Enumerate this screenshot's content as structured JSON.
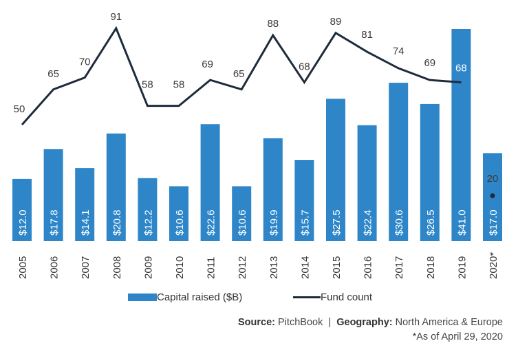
{
  "chart_data": {
    "type": "bar+line",
    "categories": [
      "2005",
      "2006",
      "2007",
      "2008",
      "2009",
      "2010",
      "2011",
      "2012",
      "2013",
      "2014",
      "2015",
      "2016",
      "2017",
      "2018",
      "2019",
      "2020*"
    ],
    "series": [
      {
        "name": "Capital raised ($B)",
        "type": "bar",
        "values": [
          12.0,
          17.8,
          14.1,
          20.8,
          12.2,
          10.6,
          22.6,
          10.6,
          19.9,
          15.7,
          27.5,
          22.4,
          30.6,
          26.5,
          41.0,
          17.0
        ],
        "labels": [
          "$12.0",
          "$17.8",
          "$14.1",
          "$20.8",
          "$12.2",
          "$10.6",
          "$22.6",
          "$10.6",
          "$19.9",
          "$15.7",
          "$27.5",
          "$22.4",
          "$30.6",
          "$26.5",
          "$41.0",
          "$17.0"
        ]
      },
      {
        "name": "Fund count",
        "type": "line",
        "values": [
          50,
          65,
          70,
          91,
          58,
          58,
          69,
          65,
          88,
          68,
          89,
          81,
          74,
          69,
          68,
          20
        ],
        "labels": [
          "50",
          "65",
          "70",
          "91",
          "58",
          "58",
          "69",
          "65",
          "88",
          "68",
          "89",
          "81",
          "74",
          "69",
          "68",
          "20"
        ]
      }
    ],
    "bar_ylim": [
      0,
      41
    ],
    "line_ylim": [
      0,
      91
    ],
    "colors": {
      "bar": "#2E86C8",
      "line": "#1E2B3C",
      "bar_label": "#ffffff",
      "text": "#3a3a3a"
    }
  },
  "legend": {
    "bar_label": "Capital raised ($B)",
    "line_label": "Fund count"
  },
  "footer": {
    "source_key": "Source:",
    "source_value": "PitchBook",
    "separator": "|",
    "geo_key": "Geography:",
    "geo_value": "North America & Europe",
    "note": "*As of April 29, 2020"
  }
}
